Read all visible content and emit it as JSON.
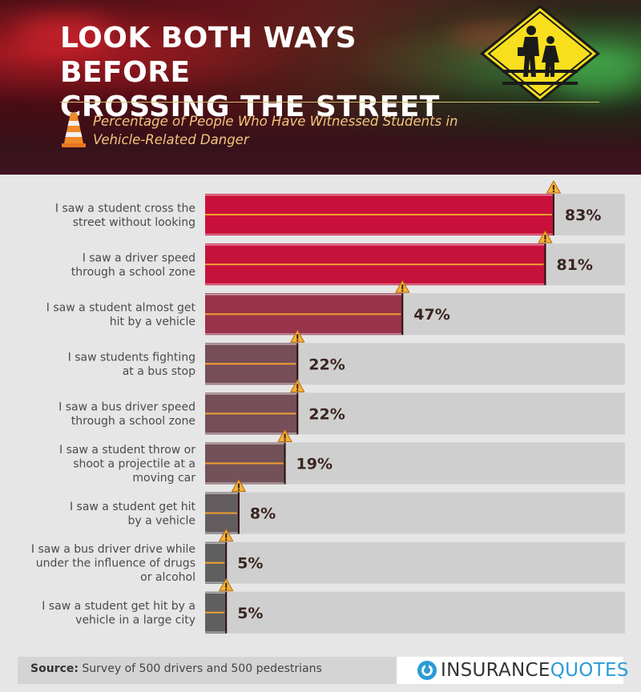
{
  "header": {
    "title_line1": "LOOK BOTH WAYS BEFORE",
    "title_line2": "CROSSING THE STREET",
    "subtitle_line1": "Percentage of People Who Have Witnessed Students in",
    "subtitle_line2": "Vehicle-Related Danger"
  },
  "chart_data": {
    "type": "bar",
    "orientation": "horizontal",
    "categories": [
      [
        "I saw a student cross the",
        "street without looking"
      ],
      [
        "I saw a driver speed",
        "through a school zone"
      ],
      [
        "I saw a student almost get",
        "hit by a vehicle"
      ],
      [
        "I saw students fighting",
        "at a bus stop"
      ],
      [
        "I saw a bus driver speed",
        "through a school zone"
      ],
      [
        "I saw a student throw or",
        "shoot a projectile at a",
        "moving car"
      ],
      [
        "I saw a student get hit",
        "by a vehicle"
      ],
      [
        "I saw a bus driver drive while",
        "under the influence of drugs",
        "or alcohol"
      ],
      [
        "I saw a student get hit by a",
        "vehicle in a large city"
      ]
    ],
    "values": [
      83,
      81,
      47,
      22,
      22,
      19,
      8,
      5,
      5
    ],
    "value_labels": [
      "83%",
      "81%",
      "47%",
      "22%",
      "22%",
      "19%",
      "8%",
      "5%",
      "5%"
    ],
    "xlim": [
      0,
      100
    ],
    "unit": "%",
    "colors": {
      "bar_high": "#c8103a",
      "bar_low": "#5f5f5f",
      "track": "#cfcfcf",
      "stripe": "#f0a030",
      "value_text": "#3a2420"
    }
  },
  "footer": {
    "source_label": "Source:",
    "source_text": " Survey of 500 drivers and 500 pedestrians",
    "logo_part1": "INSURANCE",
    "logo_part2": "QUOTES",
    "logo_icon": "insurancequotes-logo-icon"
  }
}
